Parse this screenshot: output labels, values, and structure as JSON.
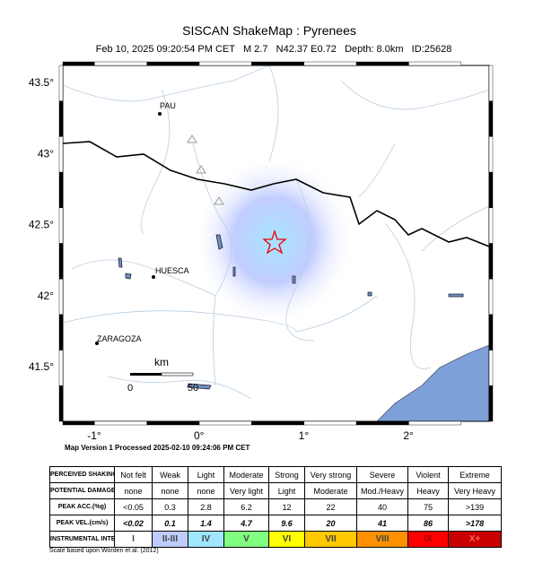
{
  "header": {
    "title": "SISCAN ShakeMap : Pyrenees",
    "subtitle": "Feb 10, 2025 09:20:54 PM CET   M 2.7   N42.37 E0.72   Depth: 8.0km   ID:25628"
  },
  "map": {
    "lat_labels": [
      "43.5°",
      "43°",
      "42.5°",
      "42°",
      "41.5°"
    ],
    "lon_labels": [
      "-1°",
      "0°",
      "1°",
      "2°"
    ],
    "places": [
      "PAU",
      "HUESCA",
      "ZARAGOZA"
    ],
    "scale": {
      "unit": "km",
      "ticks": [
        "0",
        "50"
      ]
    },
    "processed": "Map Version 1 Processed 2025-02-10 09:24:06 PM CET"
  },
  "table": {
    "row_headers": [
      "PERCEIVED SHAKING",
      "POTENTIAL DAMAGE",
      "PEAK ACC.(%g)",
      "PEAK VEL.(cm/s)",
      "INSTRUMENTAL INTENSITY"
    ],
    "rows": [
      [
        "Not felt",
        "Weak",
        "Light",
        "Moderate",
        "Strong",
        "Very strong",
        "Severe",
        "Violent",
        "Extreme"
      ],
      [
        "none",
        "none",
        "none",
        "Very light",
        "Light",
        "Moderate",
        "Mod./Heavy",
        "Heavy",
        "Very Heavy"
      ],
      [
        "<0.05",
        "0.3",
        "2.8",
        "6.2",
        "12",
        "22",
        "40",
        "75",
        ">139"
      ],
      [
        "<0.02",
        "0.1",
        "1.4",
        "4.7",
        "9.6",
        "20",
        "41",
        "86",
        ">178"
      ],
      [
        "I",
        "II-III",
        "IV",
        "V",
        "VI",
        "VII",
        "VIII",
        "IX",
        "X+"
      ]
    ],
    "intensity_colors": [
      "#ffffff",
      "#bfccff",
      "#a0e6ff",
      "#80ff80",
      "#ffff00",
      "#ffc800",
      "#ff9100",
      "#ff0000",
      "#c80000"
    ],
    "footnote": "Scale based upon Worden et al. (2012)"
  }
}
